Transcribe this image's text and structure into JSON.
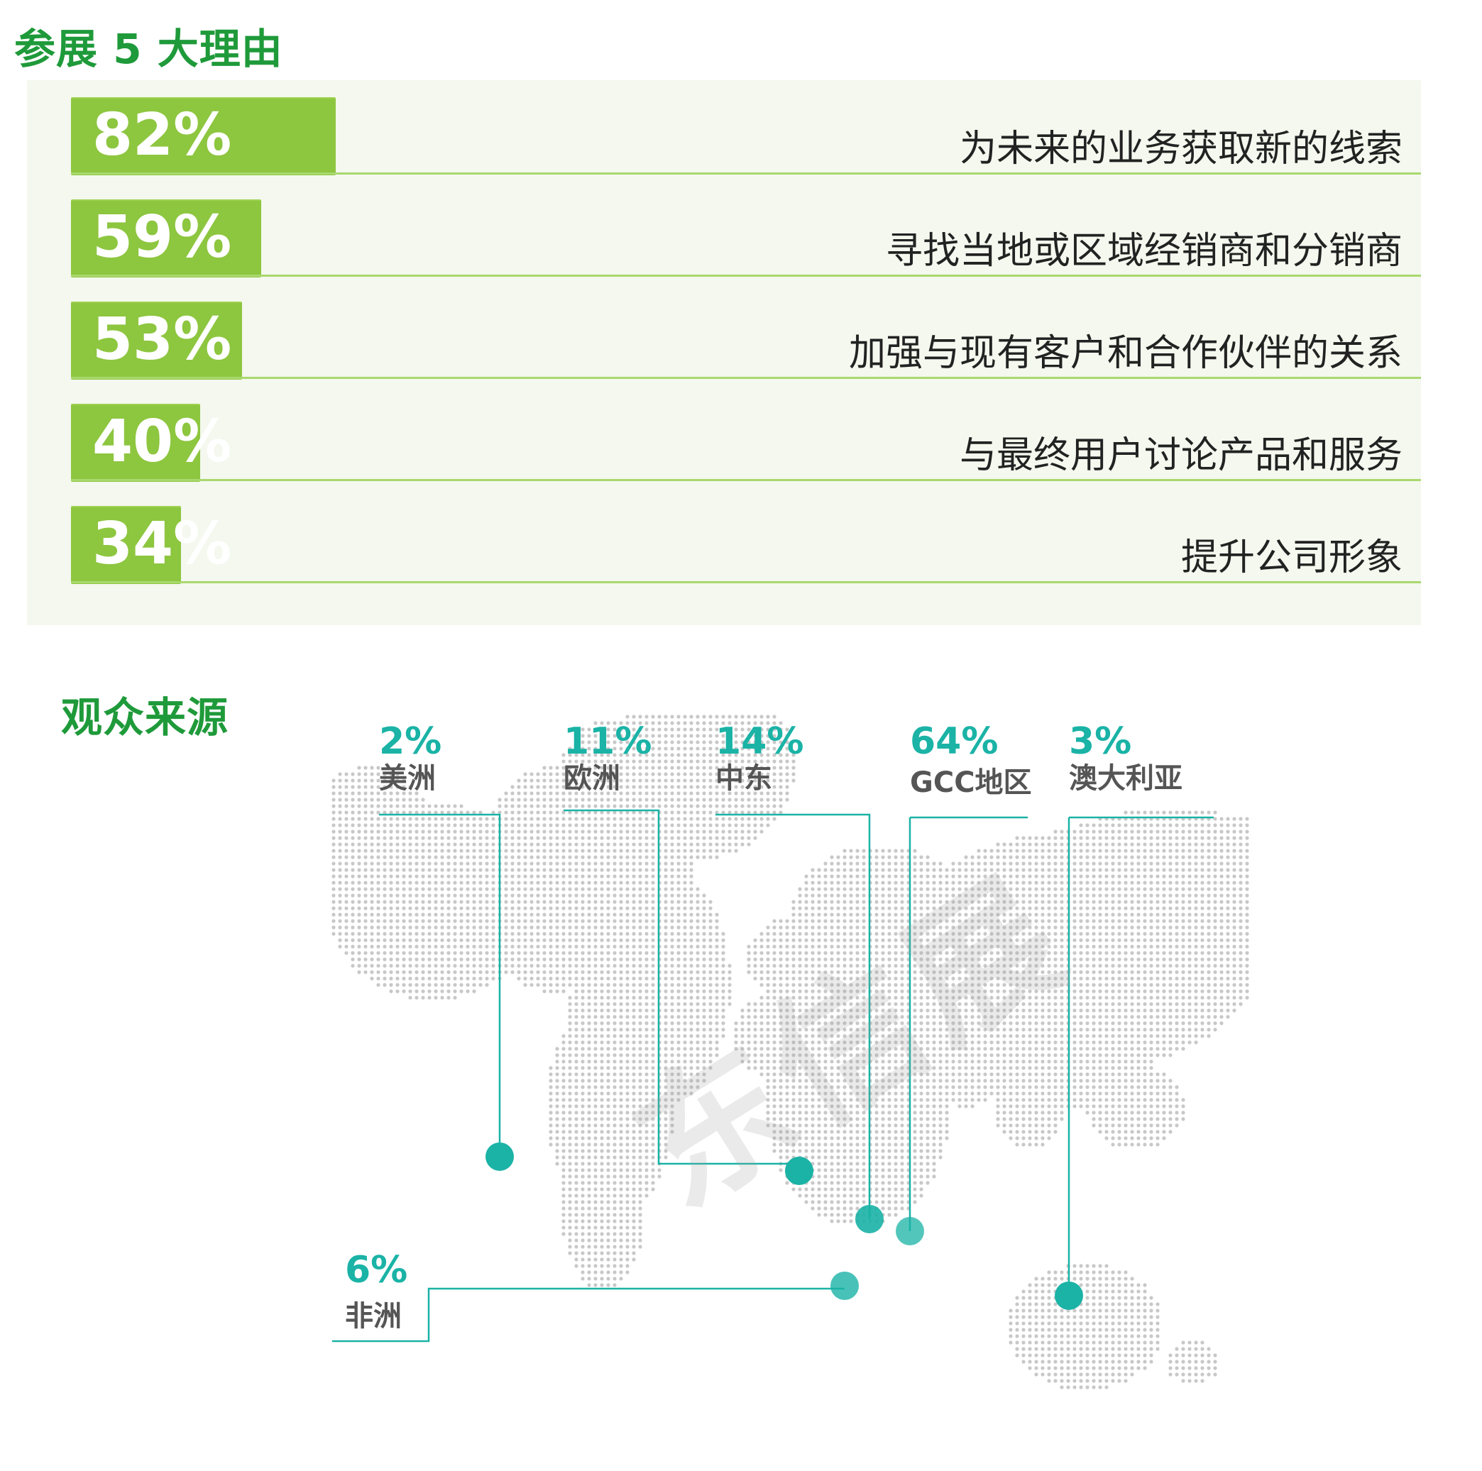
{
  "reasons": {
    "title": "参展 5 大理由",
    "colors": {
      "bar": "#8dc63f",
      "panel": "#f4f8ee",
      "title": "#1f9a3a"
    }
  },
  "audience": {
    "title": "观众来源",
    "colors": {
      "accent": "#1ab3a6",
      "label": "#555555",
      "map_dot": "#c8c8c8"
    }
  },
  "watermark": "东信展",
  "chart_data": [
    {
      "type": "bar",
      "orientation": "horizontal",
      "title": "参展 5 大理由",
      "categories": [
        "为未来的业务获取新的线索",
        "寻找当地或区域经销商和分销商",
        "加强与现有客户和合作伙伴的关系",
        "与最终用户讨论产品和服务",
        "提升公司形象"
      ],
      "values": [
        82,
        59,
        53,
        40,
        34
      ],
      "value_labels": [
        "82%",
        "59%",
        "53%",
        "40%",
        "34%"
      ],
      "unit": "%",
      "xlim": [
        0,
        100
      ]
    },
    {
      "type": "map",
      "title": "观众来源",
      "regions": [
        {
          "name": "美洲",
          "value": 2,
          "label": "2%"
        },
        {
          "name": "欧洲",
          "value": 11,
          "label": "11%"
        },
        {
          "name": "中东",
          "value": 14,
          "label": "14%"
        },
        {
          "name": "GCC地区",
          "value": 64,
          "label": "64%"
        },
        {
          "name": "澳大利亚",
          "value": 3,
          "label": "3%"
        },
        {
          "name": "非洲",
          "value": 6,
          "label": "6%"
        }
      ],
      "unit": "%"
    }
  ]
}
